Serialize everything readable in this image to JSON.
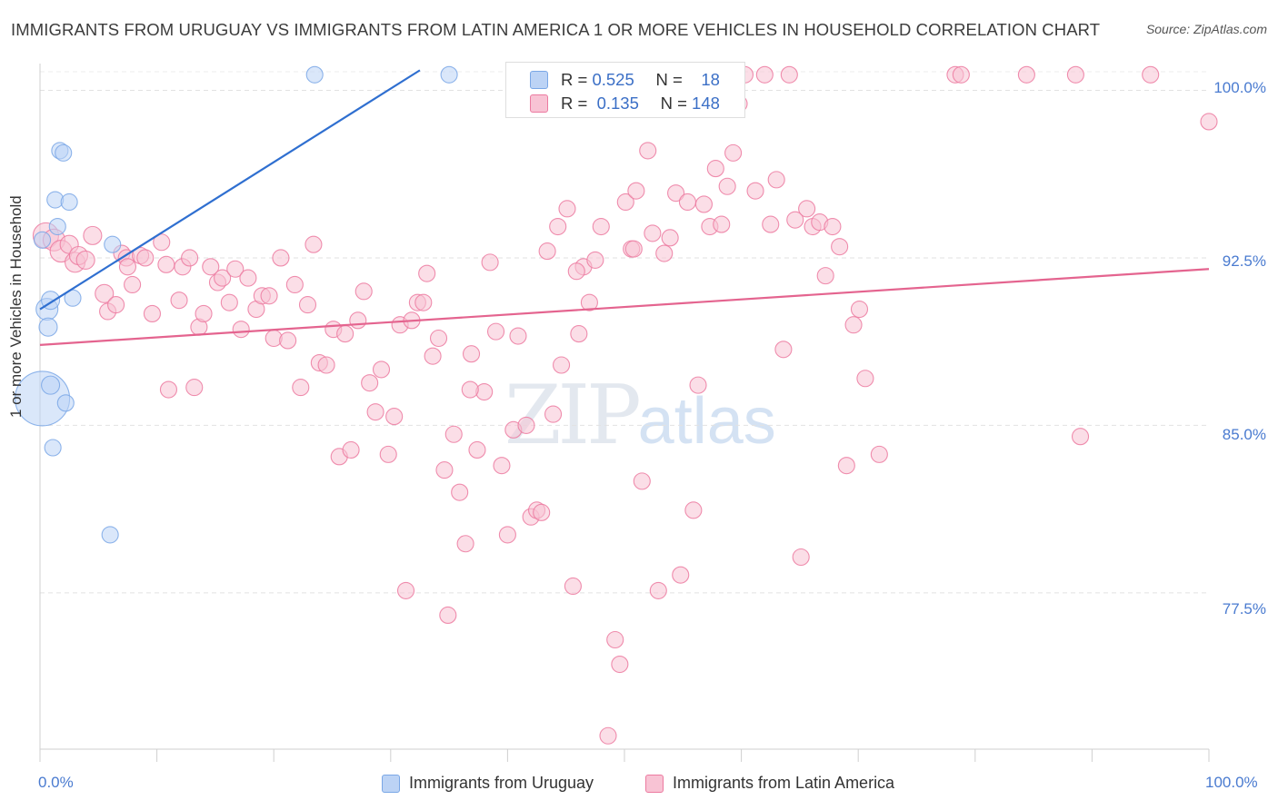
{
  "title": "IMMIGRANTS FROM URUGUAY VS IMMIGRANTS FROM LATIN AMERICA 1 OR MORE VEHICLES IN HOUSEHOLD CORRELATION CHART",
  "source": "Source: ZipAtlas.com",
  "watermark": {
    "zip": "ZIP",
    "atlas": "atlas"
  },
  "colors": {
    "blue": "#7aa7e6",
    "blue_fill": "#bcd3f5",
    "pink": "#ec7aa0",
    "pink_fill": "#f8c3d4",
    "blue_line": "#2f6fd0",
    "pink_line": "#e4648f"
  },
  "legend_box": {
    "row1": {
      "r_label": "R =",
      "r_value": "0.525",
      "n_label": "N =",
      "n_value": "18"
    },
    "row2": {
      "r_label": "R =",
      "r_value": "0.135",
      "n_label": "N =",
      "n_value": "148"
    }
  },
  "legend_bottom": {
    "series1": "Immigrants from Uruguay",
    "series2": "Immigrants from Latin America"
  },
  "chart_data": {
    "type": "scatter",
    "title": "IMMIGRANTS FROM URUGUAY VS IMMIGRANTS FROM LATIN AMERICA 1 OR MORE VEHICLES IN HOUSEHOLD CORRELATION CHART",
    "xlabel": "",
    "ylabel": "1 or more Vehicles in Household",
    "xlim": [
      0,
      100
    ],
    "ylim": [
      70.5,
      101.2
    ],
    "x_tick_labels": [
      "0.0%",
      "100.0%"
    ],
    "y_tick_labels": [
      "100.0%",
      "92.5%",
      "85.0%",
      "77.5%"
    ],
    "y_ticks": [
      100.0,
      92.5,
      85.0,
      77.5
    ],
    "grid": true,
    "legend_placement": "bottom",
    "series": [
      {
        "name": "Immigrants from Uruguay",
        "r": 0.525,
        "n": 18,
        "trend": {
          "x": [
            0,
            32.5
          ],
          "y": [
            90.2,
            100.9
          ]
        },
        "points": [
          [
            0.2,
            86.2,
            30
          ],
          [
            0.6,
            90.2,
            12
          ],
          [
            0.7,
            89.4,
            10
          ],
          [
            0.9,
            90.6,
            10
          ],
          [
            0.9,
            86.8,
            10
          ],
          [
            1.1,
            84.0,
            9
          ],
          [
            1.3,
            95.1,
            9
          ],
          [
            1.5,
            93.9,
            9
          ],
          [
            1.7,
            97.3,
            9
          ],
          [
            2.0,
            97.2,
            9
          ],
          [
            2.2,
            86.0,
            9
          ],
          [
            2.5,
            95.0,
            9
          ],
          [
            2.8,
            90.7,
            9
          ],
          [
            6.2,
            93.1,
            9
          ],
          [
            6.0,
            80.1,
            9
          ],
          [
            23.5,
            100.7,
            9
          ],
          [
            35.0,
            100.7,
            9
          ],
          [
            0.2,
            93.3,
            9
          ]
        ]
      },
      {
        "name": "Immigrants from Latin America",
        "r": 0.135,
        "n": 148,
        "trend": {
          "x": [
            0,
            100
          ],
          "y": [
            88.6,
            92.0
          ]
        },
        "points": [
          [
            0.5,
            93.5,
            14
          ],
          [
            1.2,
            93.3,
            12
          ],
          [
            1.8,
            92.8,
            12
          ],
          [
            2.5,
            93.1,
            10
          ],
          [
            3.0,
            92.3,
            11
          ],
          [
            3.3,
            92.6,
            10
          ],
          [
            3.9,
            92.4,
            10
          ],
          [
            4.5,
            93.5,
            10
          ],
          [
            5.5,
            90.9,
            10
          ],
          [
            5.8,
            90.1,
            9
          ],
          [
            6.5,
            90.4,
            9
          ],
          [
            7.0,
            92.7,
            9
          ],
          [
            7.4,
            92.5,
            9
          ],
          [
            7.5,
            92.1,
            9
          ],
          [
            7.9,
            91.3,
            9
          ],
          [
            8.6,
            92.6,
            9
          ],
          [
            9.0,
            92.5,
            9
          ],
          [
            9.6,
            90.0,
            9
          ],
          [
            10.4,
            93.2,
            9
          ],
          [
            10.8,
            92.2,
            9
          ],
          [
            11.0,
            86.6,
            9
          ],
          [
            11.9,
            90.6,
            9
          ],
          [
            12.2,
            92.1,
            9
          ],
          [
            12.8,
            92.5,
            9
          ],
          [
            13.2,
            86.7,
            9
          ],
          [
            13.6,
            89.4,
            9
          ],
          [
            14.0,
            90.0,
            9
          ],
          [
            14.6,
            92.1,
            9
          ],
          [
            15.2,
            91.4,
            9
          ],
          [
            15.6,
            91.6,
            9
          ],
          [
            16.2,
            90.5,
            9
          ],
          [
            16.7,
            92.0,
            9
          ],
          [
            17.2,
            89.3,
            9
          ],
          [
            17.8,
            91.6,
            9
          ],
          [
            18.5,
            90.2,
            9
          ],
          [
            19.0,
            90.8,
            9
          ],
          [
            19.6,
            90.8,
            9
          ],
          [
            20.0,
            88.9,
            9
          ],
          [
            20.6,
            92.5,
            9
          ],
          [
            21.2,
            88.8,
            9
          ],
          [
            21.8,
            91.3,
            9
          ],
          [
            22.3,
            86.7,
            9
          ],
          [
            22.9,
            90.4,
            9
          ],
          [
            23.4,
            93.1,
            9
          ],
          [
            23.9,
            87.8,
            9
          ],
          [
            24.5,
            87.7,
            9
          ],
          [
            25.1,
            89.3,
            9
          ],
          [
            25.6,
            83.6,
            9
          ],
          [
            26.1,
            89.1,
            9
          ],
          [
            26.6,
            83.9,
            9
          ],
          [
            27.2,
            89.7,
            9
          ],
          [
            27.7,
            91.0,
            9
          ],
          [
            28.2,
            86.9,
            9
          ],
          [
            28.7,
            85.6,
            9
          ],
          [
            29.2,
            87.5,
            9
          ],
          [
            29.8,
            83.7,
            9
          ],
          [
            30.3,
            85.4,
            9
          ],
          [
            30.8,
            89.5,
            9
          ],
          [
            31.3,
            77.6,
            9
          ],
          [
            31.8,
            89.7,
            9
          ],
          [
            32.3,
            90.5,
            9
          ],
          [
            32.8,
            90.5,
            9
          ],
          [
            33.1,
            91.8,
            9
          ],
          [
            33.6,
            88.1,
            9
          ],
          [
            34.1,
            88.9,
            9
          ],
          [
            34.6,
            83.0,
            9
          ],
          [
            34.9,
            76.5,
            9
          ],
          [
            35.4,
            84.6,
            9
          ],
          [
            35.9,
            82.0,
            9
          ],
          [
            36.4,
            79.7,
            9
          ],
          [
            36.9,
            88.2,
            9
          ],
          [
            37.4,
            83.9,
            9
          ],
          [
            38.0,
            86.5,
            9
          ],
          [
            38.5,
            92.3,
            9
          ],
          [
            39.0,
            89.2,
            9
          ],
          [
            39.5,
            83.2,
            9
          ],
          [
            40.0,
            80.1,
            9
          ],
          [
            40.5,
            84.8,
            9
          ],
          [
            40.9,
            89.0,
            9
          ],
          [
            41.6,
            85.0,
            9
          ],
          [
            42.0,
            80.9,
            9
          ],
          [
            42.5,
            81.2,
            9
          ],
          [
            42.9,
            81.1,
            9
          ],
          [
            43.4,
            92.8,
            9
          ],
          [
            43.9,
            85.5,
            9
          ],
          [
            44.3,
            93.9,
            9
          ],
          [
            44.6,
            87.7,
            9
          ],
          [
            45.1,
            94.7,
            9
          ],
          [
            45.6,
            77.8,
            9
          ],
          [
            46.1,
            89.1,
            9
          ],
          [
            46.5,
            92.1,
            9
          ],
          [
            47.0,
            90.5,
            9
          ],
          [
            47.5,
            92.4,
            9
          ],
          [
            48.0,
            93.9,
            9
          ],
          [
            48.6,
            71.1,
            9
          ],
          [
            49.2,
            75.4,
            9
          ],
          [
            49.6,
            74.3,
            9
          ],
          [
            50.1,
            95.0,
            9
          ],
          [
            50.6,
            92.9,
            9
          ],
          [
            51.0,
            95.5,
            9
          ],
          [
            51.5,
            82.5,
            9
          ],
          [
            52.0,
            97.3,
            9
          ],
          [
            52.4,
            93.6,
            9
          ],
          [
            52.9,
            77.6,
            9
          ],
          [
            53.4,
            92.7,
            9
          ],
          [
            53.9,
            93.4,
            9
          ],
          [
            54.4,
            95.4,
            9
          ],
          [
            54.8,
            78.3,
            9
          ],
          [
            55.4,
            95.0,
            9
          ],
          [
            55.9,
            81.2,
            9
          ],
          [
            56.3,
            86.8,
            9
          ],
          [
            56.8,
            94.9,
            9
          ],
          [
            57.3,
            93.9,
            9
          ],
          [
            57.8,
            96.5,
            9
          ],
          [
            58.3,
            94.0,
            9
          ],
          [
            58.8,
            95.7,
            9
          ],
          [
            59.3,
            97.2,
            9
          ],
          [
            59.8,
            99.4,
            9
          ],
          [
            60.3,
            100.7,
            9
          ],
          [
            61.2,
            95.5,
            9
          ],
          [
            62.0,
            100.7,
            9
          ],
          [
            62.5,
            94.0,
            9
          ],
          [
            63.0,
            96.0,
            9
          ],
          [
            63.6,
            88.4,
            9
          ],
          [
            64.1,
            100.7,
            9
          ],
          [
            64.6,
            94.2,
            9
          ],
          [
            65.1,
            79.1,
            9
          ],
          [
            65.6,
            94.7,
            9
          ],
          [
            66.1,
            93.9,
            9
          ],
          [
            66.7,
            94.1,
            9
          ],
          [
            67.2,
            91.7,
            9
          ],
          [
            67.8,
            93.9,
            9
          ],
          [
            68.4,
            93.0,
            9
          ],
          [
            69.0,
            83.2,
            9
          ],
          [
            69.6,
            89.5,
            9
          ],
          [
            70.1,
            90.2,
            9
          ],
          [
            70.6,
            87.1,
            9
          ],
          [
            71.8,
            83.7,
            9
          ],
          [
            78.3,
            100.7,
            9
          ],
          [
            78.8,
            100.7,
            9
          ],
          [
            84.4,
            100.7,
            9
          ],
          [
            88.6,
            100.7,
            9
          ],
          [
            89.0,
            84.5,
            9
          ],
          [
            95.0,
            100.7,
            9
          ],
          [
            100.0,
            98.6,
            9
          ],
          [
            50.8,
            92.9,
            9
          ],
          [
            45.9,
            91.9,
            9
          ],
          [
            36.8,
            86.6,
            9
          ]
        ]
      }
    ]
  }
}
